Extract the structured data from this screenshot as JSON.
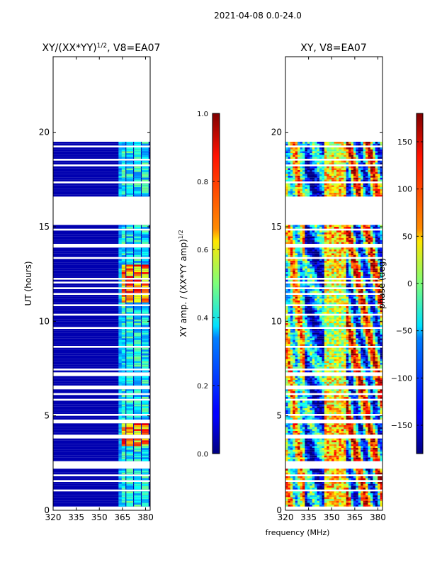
{
  "suptitle": "2021-04-08 0.0-24.0",
  "chart_data": [
    {
      "type": "heatmap",
      "title": "XY/(XX*YY)",
      "title_exponent": "1/2",
      "title_suffix": ", V8=EA07",
      "xlabel": "",
      "ylabel": "UT (hours)",
      "xlim": [
        320,
        383
      ],
      "ylim": [
        0,
        24
      ],
      "xticks": [
        320,
        335,
        350,
        365,
        380
      ],
      "yticks": [
        0,
        5,
        10,
        15,
        20
      ],
      "data_hour_ranges": [
        [
          0.2,
          2.4
        ],
        [
          2.6,
          15.1
        ],
        [
          16.6,
          19.5
        ]
      ],
      "high_value_channels": [
        365,
        370,
        375,
        380
      ],
      "colorbar": {
        "label": "XY amp. / (XX*YY amp)",
        "label_exponent": "1/2",
        "min": 0.0,
        "max": 1.0,
        "ticks": [
          0.0,
          0.2,
          0.4,
          0.6,
          0.8,
          1.0
        ],
        "tick_labels": [
          "0.0",
          "0.2",
          "0.4",
          "0.6",
          "0.8",
          "1.0"
        ]
      },
      "colormap": "jet"
    },
    {
      "type": "heatmap",
      "title": "XY, V8=EA07",
      "xlabel": "frequency (MHz)",
      "ylabel": "",
      "xlim": [
        320,
        383
      ],
      "ylim": [
        0,
        24
      ],
      "xticks": [
        320,
        335,
        350,
        365,
        380
      ],
      "yticks": [
        0,
        5,
        10,
        15,
        20
      ],
      "colorbar": {
        "label": "phase (deg)",
        "min": -180,
        "max": 180,
        "ticks": [
          -150,
          -100,
          -50,
          0,
          50,
          100,
          150
        ],
        "tick_labels": [
          "−150",
          "−100",
          "−50",
          "0",
          "50",
          "100",
          "150"
        ]
      },
      "colormap": "jet"
    }
  ]
}
